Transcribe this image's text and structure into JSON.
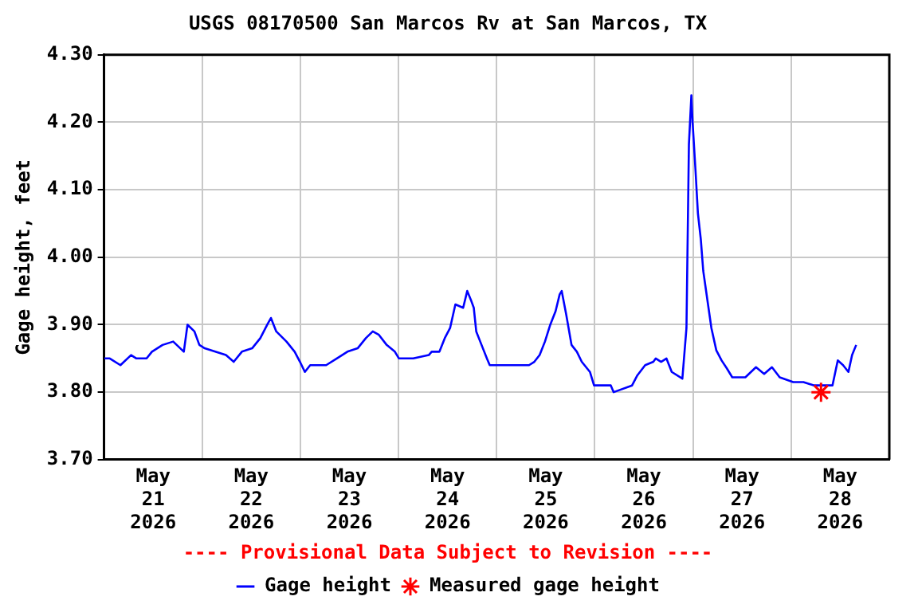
{
  "chart_data": {
    "type": "line",
    "title": "USGS 08170500 San Marcos Rv at San Marcos, TX",
    "ylabel": "Gage height, feet",
    "annotations": [
      "---- Provisional Data Subject to Revision ----"
    ],
    "xlim": [
      "2026-05-21",
      "2026-05-29"
    ],
    "xticks": [
      {
        "value": "2026-05-21T00:00",
        "label": null
      },
      {
        "value": "2026-05-21T12:00",
        "label": "May 21 2026"
      },
      {
        "value": "2026-05-22T00:00",
        "label": null
      },
      {
        "value": "2026-05-22T12:00",
        "label": "May 22 2026"
      },
      {
        "value": "2026-05-23T00:00",
        "label": null
      },
      {
        "value": "2026-05-23T12:00",
        "label": "May 23 2026"
      },
      {
        "value": "2026-05-24T00:00",
        "label": null
      },
      {
        "value": "2026-05-24T12:00",
        "label": "May 24 2026"
      },
      {
        "value": "2026-05-25T00:00",
        "label": null
      },
      {
        "value": "2026-05-25T12:00",
        "label": "May 25 2026"
      },
      {
        "value": "2026-05-26T00:00",
        "label": null
      },
      {
        "value": "2026-05-26T12:00",
        "label": "May 26 2026"
      },
      {
        "value": "2026-05-27T00:00",
        "label": null
      },
      {
        "value": "2026-05-27T12:00",
        "label": "May 27 2026"
      },
      {
        "value": "2026-05-28T00:00",
        "label": null
      },
      {
        "value": "2026-05-28T12:00",
        "label": "May 28 2026"
      },
      {
        "value": "2026-05-29T00:00",
        "label": null
      }
    ],
    "ylim": [
      3.7,
      4.3
    ],
    "yticks": [
      {
        "value": 3.7,
        "label": "3.70"
      },
      {
        "value": 3.8,
        "label": "3.80"
      },
      {
        "value": 3.9,
        "label": "3.90"
      },
      {
        "value": 4.0,
        "label": "4.00"
      },
      {
        "value": 4.1,
        "label": "4.10"
      },
      {
        "value": 4.2,
        "label": "4.20"
      },
      {
        "value": 4.3,
        "label": "4.30"
      }
    ],
    "grid": true,
    "legend": "bottom",
    "series": [
      {
        "name": "Gage height",
        "color": "#0000ff",
        "marker": "none",
        "line_style": "solid",
        "x": [
          "2026-05-21T00:06",
          "2026-05-21T01:24",
          "2026-05-21T04:00",
          "2026-05-21T06:36",
          "2026-05-21T07:54",
          "2026-05-21T10:24",
          "2026-05-21T11:42",
          "2026-05-21T14:18",
          "2026-05-21T16:54",
          "2026-05-21T19:30",
          "2026-05-21T20:24",
          "2026-05-21T22:06",
          "2026-05-21T23:18",
          "2026-05-22T00:36",
          "2026-05-22T03:12",
          "2026-05-22T05:48",
          "2026-05-22T07:42",
          "2026-05-22T09:42",
          "2026-05-22T12:12",
          "2026-05-22T14:12",
          "2026-05-22T15:54",
          "2026-05-22T16:48",
          "2026-05-22T18:06",
          "2026-05-22T20:36",
          "2026-05-22T22:36",
          "2026-05-22T23:54",
          "2026-05-23T01:06",
          "2026-05-23T02:24",
          "2026-05-23T06:18",
          "2026-05-23T08:54",
          "2026-05-23T11:30",
          "2026-05-23T14:00",
          "2026-05-23T16:00",
          "2026-05-23T17:42",
          "2026-05-23T19:12",
          "2026-05-23T21:06",
          "2026-05-23T23:06",
          "2026-05-24T00:06",
          "2026-05-24T03:36",
          "2026-05-24T07:24",
          "2026-05-24T08:06",
          "2026-05-24T10:00",
          "2026-05-24T11:18",
          "2026-05-24T12:36",
          "2026-05-24T13:54",
          "2026-05-24T15:48",
          "2026-05-24T16:48",
          "2026-05-24T17:48",
          "2026-05-24T18:24",
          "2026-05-24T19:00",
          "2026-05-24T20:18",
          "2026-05-24T21:36",
          "2026-05-24T22:18",
          "2026-05-25T00:12",
          "2026-05-25T04:06",
          "2026-05-25T07:54",
          "2026-05-25T09:12",
          "2026-05-25T10:30",
          "2026-05-25T11:48",
          "2026-05-25T13:06",
          "2026-05-25T14:24",
          "2026-05-25T15:24",
          "2026-05-25T15:54",
          "2026-05-25T17:00",
          "2026-05-25T18:18",
          "2026-05-25T19:36",
          "2026-05-25T20:48",
          "2026-05-25T22:48",
          "2026-05-25T23:48",
          "2026-05-26T03:54",
          "2026-05-26T04:36",
          "2026-05-26T09:06",
          "2026-05-26T10:24",
          "2026-05-26T12:18",
          "2026-05-26T14:18",
          "2026-05-26T14:54",
          "2026-05-26T16:12",
          "2026-05-26T17:30",
          "2026-05-26T18:48",
          "2026-05-26T21:24",
          "2026-05-26T22:24",
          "2026-05-26T23:00",
          "2026-05-26T23:36",
          "2026-05-26T23:54",
          "2026-05-27T00:36",
          "2026-05-27T01:12",
          "2026-05-27T01:54",
          "2026-05-27T02:30",
          "2026-05-27T03:36",
          "2026-05-27T04:30",
          "2026-05-27T05:42",
          "2026-05-27T07:00",
          "2026-05-27T08:18",
          "2026-05-27T09:36",
          "2026-05-27T12:48",
          "2026-05-27T15:24",
          "2026-05-27T17:24",
          "2026-05-27T19:18",
          "2026-05-27T21:12",
          "2026-05-28T00:30",
          "2026-05-28T03:00",
          "2026-05-28T05:36",
          "2026-05-28T10:06",
          "2026-05-28T11:24",
          "2026-05-28T12:42",
          "2026-05-28T14:00",
          "2026-05-28T14:54",
          "2026-05-28T15:54"
        ],
        "values": [
          3.85,
          3.85,
          3.84,
          3.855,
          3.85,
          3.85,
          3.86,
          3.87,
          3.875,
          3.86,
          3.9,
          3.89,
          3.87,
          3.865,
          3.86,
          3.855,
          3.845,
          3.86,
          3.865,
          3.88,
          3.9,
          3.91,
          3.89,
          3.875,
          3.86,
          3.845,
          3.83,
          3.84,
          3.84,
          3.85,
          3.86,
          3.865,
          3.88,
          3.89,
          3.885,
          3.87,
          3.86,
          3.85,
          3.85,
          3.855,
          3.86,
          3.86,
          3.88,
          3.895,
          3.93,
          3.925,
          3.95,
          3.935,
          3.925,
          3.89,
          3.87,
          3.85,
          3.84,
          3.84,
          3.84,
          3.84,
          3.845,
          3.855,
          3.875,
          3.9,
          3.92,
          3.945,
          3.95,
          3.915,
          3.87,
          3.86,
          3.845,
          3.83,
          3.81,
          3.81,
          3.8,
          3.81,
          3.825,
          3.84,
          3.845,
          3.85,
          3.845,
          3.85,
          3.83,
          3.82,
          3.895,
          4.167,
          4.24,
          4.2,
          4.13,
          4.065,
          4.027,
          3.98,
          3.933,
          3.895,
          3.862,
          3.847,
          3.835,
          3.822,
          3.822,
          3.837,
          3.827,
          3.837,
          3.822,
          3.815,
          3.815,
          3.81,
          3.81,
          3.847,
          3.84,
          3.83,
          3.855,
          3.87
        ]
      },
      {
        "name": "Measured gage height",
        "color": "#ff0000",
        "type": "scatter",
        "marker": "cross",
        "x": [
          "2026-05-28T07:18"
        ],
        "values": [
          3.8
        ]
      }
    ]
  }
}
